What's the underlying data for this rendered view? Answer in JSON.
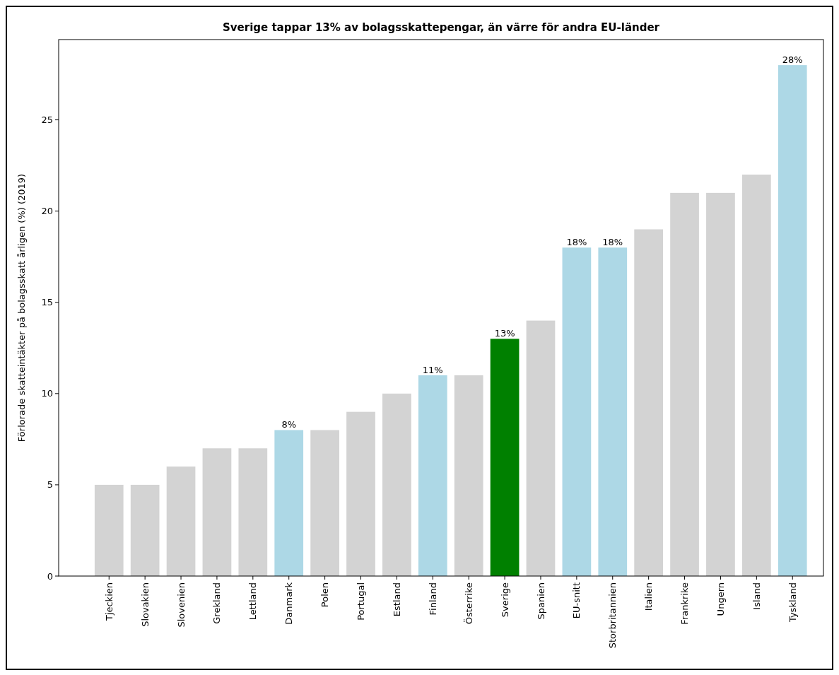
{
  "chart_data": {
    "type": "bar",
    "title": "Sverige tappar 13% av bolagsskattepengar, än värre för andra EU-länder",
    "ylabel": "Förlorade skatteintäkter på bolagsskatt årligen (%) (2019)",
    "categories": [
      "Tjeckien",
      "Slovakien",
      "Slovenien",
      "Grekland",
      "Lettland",
      "Danmark",
      "Polen",
      "Portugal",
      "Estland",
      "Finland",
      "Österrike",
      "Sverige",
      "Spanien",
      "EU-snitt",
      "Storbritannien",
      "Italien",
      "Frankrike",
      "Ungern",
      "Island",
      "Tyskland"
    ],
    "values": [
      5,
      5,
      6,
      7,
      7,
      8,
      8,
      9,
      10,
      11,
      11,
      13,
      14,
      18,
      18,
      19,
      21,
      21,
      22,
      28
    ],
    "colors": [
      "#d3d3d3",
      "#d3d3d3",
      "#d3d3d3",
      "#d3d3d3",
      "#d3d3d3",
      "#add8e6",
      "#d3d3d3",
      "#d3d3d3",
      "#d3d3d3",
      "#add8e6",
      "#d3d3d3",
      "#008000",
      "#d3d3d3",
      "#add8e6",
      "#add8e6",
      "#d3d3d3",
      "#d3d3d3",
      "#d3d3d3",
      "#d3d3d3",
      "#add8e6"
    ],
    "value_labels": [
      null,
      null,
      null,
      null,
      null,
      "8%",
      null,
      null,
      null,
      "11%",
      null,
      "13%",
      null,
      "18%",
      "18%",
      null,
      null,
      null,
      null,
      "28%"
    ],
    "ylim": [
      0,
      29.4
    ],
    "yticks": [
      0,
      5,
      10,
      15,
      20,
      25
    ],
    "grid": false
  }
}
